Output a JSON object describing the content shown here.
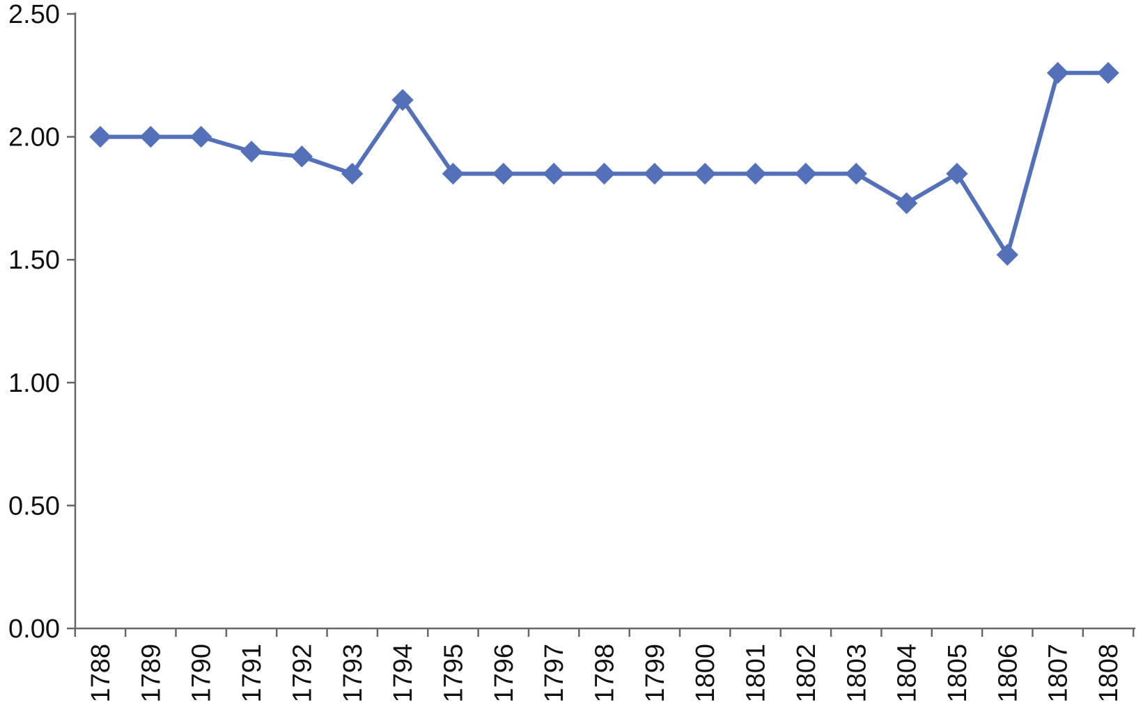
{
  "chart_data": {
    "type": "line",
    "title": "",
    "xlabel": "",
    "ylabel": "",
    "ylim": [
      0,
      2.5
    ],
    "y_ticks": [
      "0.00",
      "0.50",
      "1.00",
      "1.50",
      "2.00",
      "2.50"
    ],
    "y_tick_values": [
      0,
      0.5,
      1.0,
      1.5,
      2.0,
      2.5
    ],
    "categories": [
      "1788",
      "1789",
      "1790",
      "1791",
      "1792",
      "1793",
      "1794",
      "1795",
      "1796",
      "1797",
      "1798",
      "1799",
      "1800",
      "1801",
      "1802",
      "1803",
      "1804",
      "1805",
      "1806",
      "1807",
      "1808"
    ],
    "series": [
      {
        "values": [
          2.0,
          2.0,
          2.0,
          1.94,
          1.92,
          1.85,
          2.15,
          1.85,
          1.85,
          1.85,
          1.85,
          1.85,
          1.85,
          1.85,
          1.85,
          1.85,
          1.73,
          1.85,
          1.52,
          2.26,
          2.26
        ],
        "color": "#5470b8",
        "marker": "diamond"
      }
    ],
    "grid": false,
    "legend": "none"
  }
}
